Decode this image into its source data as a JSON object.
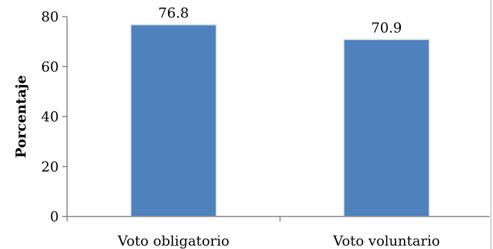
{
  "chart_data": {
    "type": "bar",
    "categories": [
      "Voto obligatorio",
      "Voto voluntario"
    ],
    "series": [
      {
        "values": [
          76.8,
          70.9
        ]
      }
    ],
    "data_labels": [
      "76.8",
      "70.9"
    ],
    "title": "",
    "xlabel": "",
    "ylabel": "Porcentaje",
    "ylim": [
      0,
      80
    ],
    "yticks": [
      "0",
      "20",
      "40",
      "60",
      "80"
    ],
    "grid": false,
    "legend": "none",
    "colors": {
      "bar": "#4f81bd",
      "bar_edge": "#e6e6e6",
      "axis": "#808080"
    }
  }
}
